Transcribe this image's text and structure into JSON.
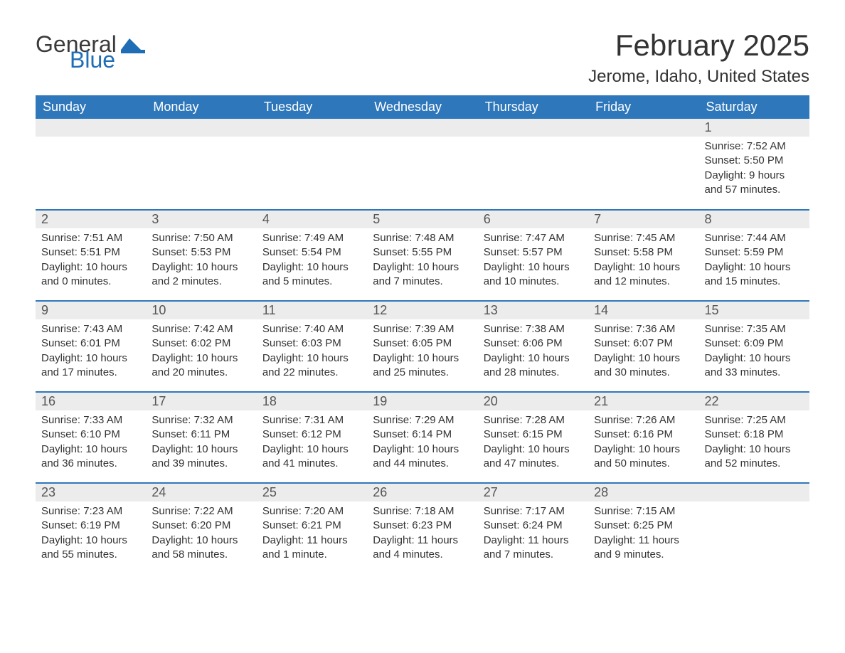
{
  "brand": {
    "word1": "General",
    "word2": "Blue",
    "brand_color": "#1f6db5"
  },
  "title": "February 2025",
  "location": "Jerome, Idaho, United States",
  "colors": {
    "header_bg": "#2f77bb",
    "header_text": "#ffffff",
    "daynum_bg": "#ececec",
    "text": "#333333",
    "border": "#2f77bb"
  },
  "weekdays": [
    "Sunday",
    "Monday",
    "Tuesday",
    "Wednesday",
    "Thursday",
    "Friday",
    "Saturday"
  ],
  "weeks": [
    [
      {
        "day": "",
        "lines": []
      },
      {
        "day": "",
        "lines": []
      },
      {
        "day": "",
        "lines": []
      },
      {
        "day": "",
        "lines": []
      },
      {
        "day": "",
        "lines": []
      },
      {
        "day": "",
        "lines": []
      },
      {
        "day": "1",
        "lines": [
          "Sunrise: 7:52 AM",
          "Sunset: 5:50 PM",
          "Daylight: 9 hours and 57 minutes."
        ]
      }
    ],
    [
      {
        "day": "2",
        "lines": [
          "Sunrise: 7:51 AM",
          "Sunset: 5:51 PM",
          "Daylight: 10 hours and 0 minutes."
        ]
      },
      {
        "day": "3",
        "lines": [
          "Sunrise: 7:50 AM",
          "Sunset: 5:53 PM",
          "Daylight: 10 hours and 2 minutes."
        ]
      },
      {
        "day": "4",
        "lines": [
          "Sunrise: 7:49 AM",
          "Sunset: 5:54 PM",
          "Daylight: 10 hours and 5 minutes."
        ]
      },
      {
        "day": "5",
        "lines": [
          "Sunrise: 7:48 AM",
          "Sunset: 5:55 PM",
          "Daylight: 10 hours and 7 minutes."
        ]
      },
      {
        "day": "6",
        "lines": [
          "Sunrise: 7:47 AM",
          "Sunset: 5:57 PM",
          "Daylight: 10 hours and 10 minutes."
        ]
      },
      {
        "day": "7",
        "lines": [
          "Sunrise: 7:45 AM",
          "Sunset: 5:58 PM",
          "Daylight: 10 hours and 12 minutes."
        ]
      },
      {
        "day": "8",
        "lines": [
          "Sunrise: 7:44 AM",
          "Sunset: 5:59 PM",
          "Daylight: 10 hours and 15 minutes."
        ]
      }
    ],
    [
      {
        "day": "9",
        "lines": [
          "Sunrise: 7:43 AM",
          "Sunset: 6:01 PM",
          "Daylight: 10 hours and 17 minutes."
        ]
      },
      {
        "day": "10",
        "lines": [
          "Sunrise: 7:42 AM",
          "Sunset: 6:02 PM",
          "Daylight: 10 hours and 20 minutes."
        ]
      },
      {
        "day": "11",
        "lines": [
          "Sunrise: 7:40 AM",
          "Sunset: 6:03 PM",
          "Daylight: 10 hours and 22 minutes."
        ]
      },
      {
        "day": "12",
        "lines": [
          "Sunrise: 7:39 AM",
          "Sunset: 6:05 PM",
          "Daylight: 10 hours and 25 minutes."
        ]
      },
      {
        "day": "13",
        "lines": [
          "Sunrise: 7:38 AM",
          "Sunset: 6:06 PM",
          "Daylight: 10 hours and 28 minutes."
        ]
      },
      {
        "day": "14",
        "lines": [
          "Sunrise: 7:36 AM",
          "Sunset: 6:07 PM",
          "Daylight: 10 hours and 30 minutes."
        ]
      },
      {
        "day": "15",
        "lines": [
          "Sunrise: 7:35 AM",
          "Sunset: 6:09 PM",
          "Daylight: 10 hours and 33 minutes."
        ]
      }
    ],
    [
      {
        "day": "16",
        "lines": [
          "Sunrise: 7:33 AM",
          "Sunset: 6:10 PM",
          "Daylight: 10 hours and 36 minutes."
        ]
      },
      {
        "day": "17",
        "lines": [
          "Sunrise: 7:32 AM",
          "Sunset: 6:11 PM",
          "Daylight: 10 hours and 39 minutes."
        ]
      },
      {
        "day": "18",
        "lines": [
          "Sunrise: 7:31 AM",
          "Sunset: 6:12 PM",
          "Daylight: 10 hours and 41 minutes."
        ]
      },
      {
        "day": "19",
        "lines": [
          "Sunrise: 7:29 AM",
          "Sunset: 6:14 PM",
          "Daylight: 10 hours and 44 minutes."
        ]
      },
      {
        "day": "20",
        "lines": [
          "Sunrise: 7:28 AM",
          "Sunset: 6:15 PM",
          "Daylight: 10 hours and 47 minutes."
        ]
      },
      {
        "day": "21",
        "lines": [
          "Sunrise: 7:26 AM",
          "Sunset: 6:16 PM",
          "Daylight: 10 hours and 50 minutes."
        ]
      },
      {
        "day": "22",
        "lines": [
          "Sunrise: 7:25 AM",
          "Sunset: 6:18 PM",
          "Daylight: 10 hours and 52 minutes."
        ]
      }
    ],
    [
      {
        "day": "23",
        "lines": [
          "Sunrise: 7:23 AM",
          "Sunset: 6:19 PM",
          "Daylight: 10 hours and 55 minutes."
        ]
      },
      {
        "day": "24",
        "lines": [
          "Sunrise: 7:22 AM",
          "Sunset: 6:20 PM",
          "Daylight: 10 hours and 58 minutes."
        ]
      },
      {
        "day": "25",
        "lines": [
          "Sunrise: 7:20 AM",
          "Sunset: 6:21 PM",
          "Daylight: 11 hours and 1 minute."
        ]
      },
      {
        "day": "26",
        "lines": [
          "Sunrise: 7:18 AM",
          "Sunset: 6:23 PM",
          "Daylight: 11 hours and 4 minutes."
        ]
      },
      {
        "day": "27",
        "lines": [
          "Sunrise: 7:17 AM",
          "Sunset: 6:24 PM",
          "Daylight: 11 hours and 7 minutes."
        ]
      },
      {
        "day": "28",
        "lines": [
          "Sunrise: 7:15 AM",
          "Sunset: 6:25 PM",
          "Daylight: 11 hours and 9 minutes."
        ]
      },
      {
        "day": "",
        "lines": []
      }
    ]
  ]
}
